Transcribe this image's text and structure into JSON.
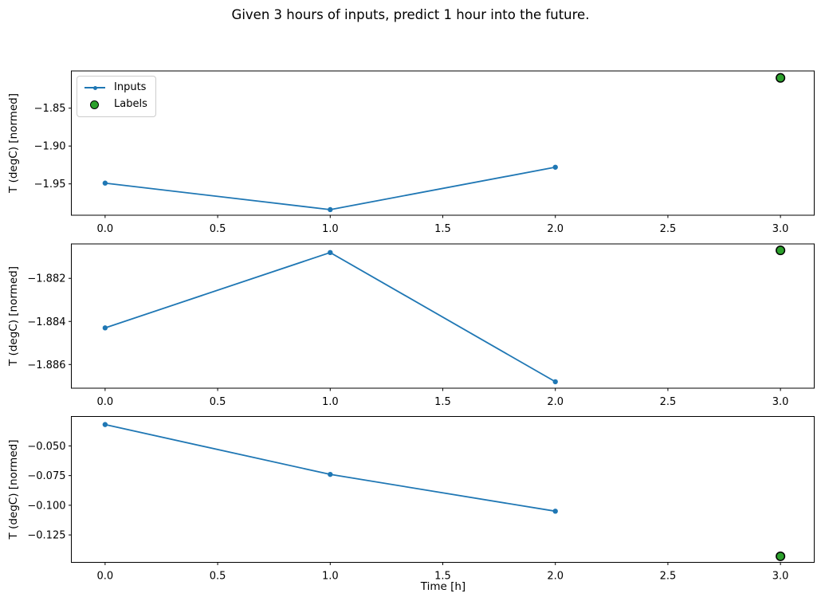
{
  "chart_data": {
    "type": "line",
    "title": "Given 3 hours of inputs, predict 1 hour into the future.",
    "xlabel": "Time [h]",
    "xlim": [
      -0.15,
      3.15
    ],
    "grid": false,
    "colors": {
      "inputs_line": "#1f77b4",
      "labels_fill": "#2ca02c",
      "labels_edge": "#000000",
      "spine": "#000000",
      "legend_border": "#cccccc"
    },
    "legend": {
      "position": "upper left",
      "entries": [
        "Inputs",
        "Labels"
      ]
    },
    "xticks": [
      {
        "v": 0.0,
        "label": "0.0"
      },
      {
        "v": 0.5,
        "label": "0.5"
      },
      {
        "v": 1.0,
        "label": "1.0"
      },
      {
        "v": 1.5,
        "label": "1.5"
      },
      {
        "v": 2.0,
        "label": "2.0"
      },
      {
        "v": 2.5,
        "label": "2.5"
      },
      {
        "v": 3.0,
        "label": "3.0"
      }
    ],
    "subplots": [
      {
        "ylabel": "T (degC) [normed]",
        "ylim": [
          -1.9914,
          -1.8008
        ],
        "yticks": [
          {
            "v": -1.85,
            "label": "−1.85"
          },
          {
            "v": -1.9,
            "label": "−1.90"
          },
          {
            "v": -1.95,
            "label": "−1.95"
          }
        ],
        "series": [
          {
            "name": "Inputs",
            "style": "line-marker",
            "x": [
              0,
              1,
              2
            ],
            "y": [
              -1.949,
              -1.984,
              -1.928
            ]
          },
          {
            "name": "Labels",
            "style": "scatter",
            "x": [
              3
            ],
            "y": [
              -1.81
            ]
          }
        ],
        "show_legend": true
      },
      {
        "ylabel": "T (degC) [normed]",
        "ylim": [
          -1.8871,
          -1.8804
        ],
        "yticks": [
          {
            "v": -1.882,
            "label": "−1.882"
          },
          {
            "v": -1.884,
            "label": "−1.884"
          },
          {
            "v": -1.886,
            "label": "−1.886"
          }
        ],
        "series": [
          {
            "name": "Inputs",
            "style": "line-marker",
            "x": [
              0,
              1,
              2
            ],
            "y": [
              -1.8843,
              -1.8808,
              -1.8868
            ]
          },
          {
            "name": "Labels",
            "style": "scatter",
            "x": [
              3
            ],
            "y": [
              -1.8807
            ]
          }
        ],
        "show_legend": false
      },
      {
        "ylabel": "T (degC) [normed]",
        "ylim": [
          -0.1481,
          -0.0252
        ],
        "yticks": [
          {
            "v": -0.05,
            "label": "−0.050"
          },
          {
            "v": -0.075,
            "label": "−0.075"
          },
          {
            "v": -0.1,
            "label": "−0.100"
          },
          {
            "v": -0.125,
            "label": "−0.125"
          }
        ],
        "series": [
          {
            "name": "Inputs",
            "style": "line-marker",
            "x": [
              0,
              1,
              2
            ],
            "y": [
              -0.032,
              -0.074,
              -0.105
            ]
          },
          {
            "name": "Labels",
            "style": "scatter",
            "x": [
              3
            ],
            "y": [
              -0.143
            ]
          }
        ],
        "show_legend": false
      }
    ]
  }
}
